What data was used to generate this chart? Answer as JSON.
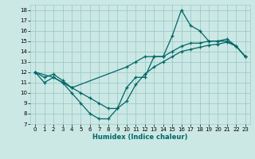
{
  "xlabel": "Humidex (Indice chaleur)",
  "background_color": "#cce8e4",
  "grid_color": "#99cccc",
  "line_color": "#006666",
  "xlim": [
    -0.5,
    23.5
  ],
  "ylim": [
    7,
    18.5
  ],
  "xticks": [
    0,
    1,
    2,
    3,
    4,
    5,
    6,
    7,
    8,
    9,
    10,
    11,
    12,
    13,
    14,
    15,
    16,
    17,
    18,
    19,
    20,
    21,
    22,
    23
  ],
  "yticks": [
    7,
    8,
    9,
    10,
    11,
    12,
    13,
    14,
    15,
    16,
    17,
    18
  ],
  "s1_x": [
    0,
    1,
    2,
    3,
    4,
    5,
    6,
    7,
    8,
    9,
    10,
    11,
    12,
    13,
    14,
    15,
    16,
    17,
    18,
    19,
    20,
    21,
    22,
    23
  ],
  "s1_y": [
    12.0,
    11.0,
    11.5,
    11.0,
    10.0,
    9.0,
    8.0,
    7.5,
    7.5,
    8.5,
    10.5,
    11.5,
    11.5,
    13.5,
    13.5,
    15.5,
    18.0,
    16.5,
    16.0,
    15.0,
    15.0,
    15.0,
    14.5,
    13.5
  ],
  "s2_x": [
    0,
    2,
    3,
    4,
    10,
    11,
    12,
    13,
    14,
    15,
    16,
    17,
    18,
    19,
    20,
    21,
    22,
    23
  ],
  "s2_y": [
    12.0,
    11.5,
    11.0,
    10.5,
    12.5,
    13.0,
    13.5,
    13.5,
    13.5,
    14.0,
    14.5,
    14.8,
    14.8,
    15.0,
    15.0,
    15.2,
    14.5,
    13.5
  ],
  "s3_x": [
    0,
    1,
    2,
    3,
    4,
    5,
    6,
    7,
    8,
    9,
    10,
    11,
    12,
    13,
    14,
    15,
    16,
    17,
    18,
    19,
    20,
    21,
    22,
    23
  ],
  "s3_y": [
    12.0,
    11.5,
    11.8,
    11.2,
    10.5,
    10.0,
    9.5,
    9.0,
    8.5,
    8.5,
    9.2,
    10.8,
    11.8,
    12.5,
    13.0,
    13.5,
    14.0,
    14.2,
    14.4,
    14.6,
    14.7,
    14.9,
    14.5,
    13.5
  ]
}
